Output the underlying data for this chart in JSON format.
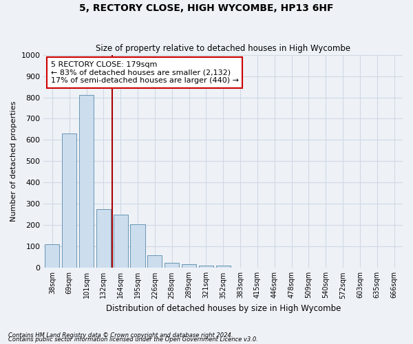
{
  "title": "5, RECTORY CLOSE, HIGH WYCOMBE, HP13 6HF",
  "subtitle": "Size of property relative to detached houses in High Wycombe",
  "xlabel": "Distribution of detached houses by size in High Wycombe",
  "ylabel": "Number of detached properties",
  "footnote1": "Contains HM Land Registry data © Crown copyright and database right 2024.",
  "footnote2": "Contains public sector information licensed under the Open Government Licence v3.0.",
  "bin_labels": [
    "38sqm",
    "69sqm",
    "101sqm",
    "132sqm",
    "164sqm",
    "195sqm",
    "226sqm",
    "258sqm",
    "289sqm",
    "321sqm",
    "352sqm",
    "383sqm",
    "415sqm",
    "446sqm",
    "478sqm",
    "509sqm",
    "540sqm",
    "572sqm",
    "603sqm",
    "635sqm",
    "666sqm"
  ],
  "bar_values": [
    110,
    630,
    810,
    275,
    250,
    205,
    60,
    25,
    18,
    10,
    10,
    0,
    0,
    0,
    0,
    0,
    0,
    0,
    0,
    0,
    0
  ],
  "bar_color": "#ccdded",
  "bar_edge_color": "#5588aa",
  "property_line_x": 3.5,
  "property_line_color": "#aa0000",
  "annotation_text": "5 RECTORY CLOSE: 179sqm\n← 83% of detached houses are smaller (2,132)\n17% of semi-detached houses are larger (440) →",
  "annotation_box_color": "#ffffff",
  "annotation_box_edge": "#cc0000",
  "ylim": [
    0,
    1000
  ],
  "yticks": [
    0,
    100,
    200,
    300,
    400,
    500,
    600,
    700,
    800,
    900,
    1000
  ],
  "background_color": "#eef2f7",
  "axes_background": "#eef2f7",
  "grid_color": "#d0d8e4"
}
